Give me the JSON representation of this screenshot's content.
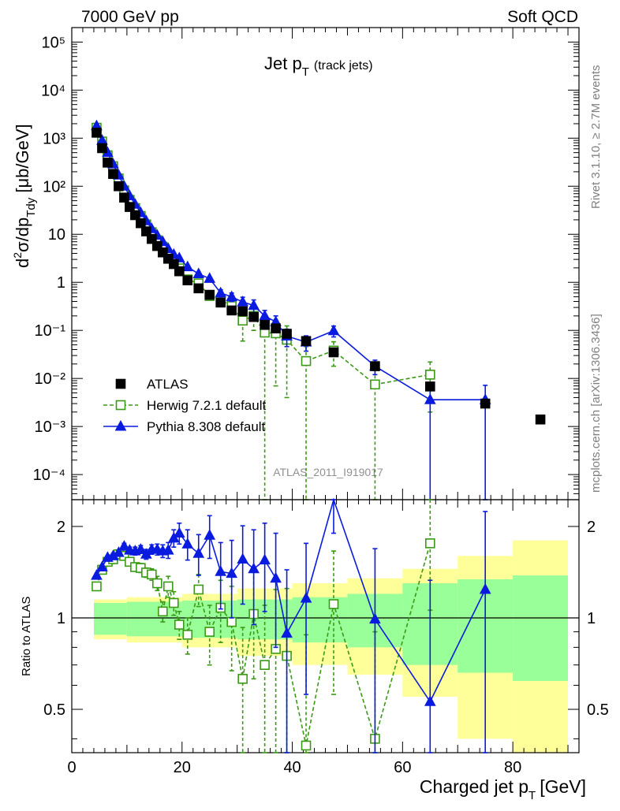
{
  "header": {
    "left": "7000 GeV pp",
    "right": "Soft QCD"
  },
  "side_text": {
    "upper": "Rivet 3.1.10, ≥ 2.7M events",
    "lower": "mcplots.cern.ch [arXiv:1306.3436]"
  },
  "watermark": "ATLAS_2011_I919017",
  "colors": {
    "atlas": "#000000",
    "herwig": "#3a9a14",
    "pythia": "#0a1be0",
    "band_inner": "#99ff99",
    "band_outer": "#ffff99"
  },
  "chart_data": [
    {
      "type": "scatter",
      "title": "Jet p_T (track jets)",
      "title_main": "Jet p",
      "title_sub": "T",
      "title_note": "(track jets)",
      "ylabel": "d²σ/dp_Tdy [μb/GeV]",
      "xlim": [
        0,
        92
      ],
      "ylim": [
        3e-05,
        200000.0
      ],
      "y_scale": "log",
      "y_ticks": [
        "10⁵",
        "10⁴",
        "10³",
        "10²",
        "10",
        "1",
        "10⁻¹",
        "10⁻²",
        "10⁻³",
        "10⁻⁴"
      ],
      "legend_position": "bottom-left",
      "x": [
        4.5,
        5.5,
        6.5,
        7.5,
        8.5,
        9.5,
        10.5,
        11.5,
        12.5,
        13.5,
        14.5,
        15.5,
        16.5,
        17.5,
        18.5,
        19.5,
        21,
        23,
        25,
        27,
        29,
        31,
        33,
        35,
        37,
        39,
        42.5,
        47.5,
        55,
        65,
        75,
        85
      ],
      "series": [
        {
          "name": "ATLAS",
          "values": [
            1300,
            620,
            310,
            180,
            100,
            58,
            37,
            25,
            17,
            11.5,
            8,
            5.7,
            4.2,
            3.1,
            2.4,
            1.7,
            1.1,
            0.75,
            0.55,
            0.38,
            0.26,
            0.25,
            0.19,
            0.13,
            0.11,
            0.085,
            0.06,
            0.035,
            0.018,
            0.0068,
            0.003,
            0.0014
          ]
        },
        {
          "name": "Herwig 7.2.1 default",
          "values": [
            1650,
            850,
            440,
            260,
            145,
            82,
            52,
            35,
            24,
            16,
            11,
            7.5,
            5.5,
            3.5,
            2.7,
            1.95,
            1.15,
            0.95,
            0.52,
            0.43,
            0.32,
            0.16,
            0.2,
            0.09,
            0.087,
            0.064,
            0.023,
            0.038,
            0.0075,
            0.012
          ],
          "errors": [
            0,
            0,
            0,
            0,
            0,
            0,
            0,
            0,
            0,
            0,
            0,
            0,
            0,
            0,
            0,
            0,
            0,
            0,
            0,
            0,
            0.1,
            0.1,
            0.1,
            0.1,
            0.08,
            0.06,
            0.023,
            0.02,
            0.0075,
            0.01
          ]
        },
        {
          "name": "Pythia 8.308 default",
          "values": [
            1800,
            900,
            500,
            290,
            170,
            100,
            63,
            42,
            28,
            19,
            13,
            9.5,
            7,
            5,
            3.8,
            3.2,
            2.1,
            1.5,
            1.2,
            0.6,
            0.5,
            0.39,
            0.33,
            0.2,
            0.15,
            0.076,
            0.057,
            0.098,
            0.018,
            0.0036,
            0.0036
          ],
          "errors": [
            0,
            0,
            0,
            0,
            0,
            0,
            0,
            0,
            0,
            0,
            0,
            0,
            0,
            0,
            0,
            0,
            0,
            0,
            0,
            0.1,
            0.1,
            0.1,
            0.1,
            0.06,
            0.05,
            0.03,
            0.02,
            0.025,
            0.006,
            0.0036,
            0.0036
          ]
        }
      ]
    },
    {
      "type": "line",
      "ylabel": "Ratio to ATLAS",
      "xlabel": "Charged jet p_T [GeV]",
      "xlabel_main": "Charged jet p",
      "xlabel_sub": "T",
      "xlabel_unit": "[GeV]",
      "xlim": [
        0,
        92
      ],
      "ylim": [
        0.36,
        2.45
      ],
      "y_scale": "log",
      "x_ticks": [
        0,
        20,
        40,
        60,
        80
      ],
      "y_ticks": [
        0.5,
        1,
        2
      ],
      "reference_line": 1,
      "bands": {
        "edges": [
          4,
          10,
          20,
          30,
          40,
          50,
          60,
          70,
          80,
          90
        ],
        "inner": [
          0.12,
          0.13,
          0.14,
          0.15,
          0.17,
          0.2,
          0.3,
          0.34,
          0.38
        ],
        "outer": [
          0.15,
          0.17,
          0.2,
          0.25,
          0.3,
          0.35,
          0.45,
          0.6,
          0.8
        ]
      },
      "series": [
        {
          "name": "Herwig 7.2.1 default",
          "x": [
            4.5,
            5.5,
            6.5,
            7.5,
            8.5,
            9.5,
            10.5,
            11.5,
            12.5,
            13.5,
            14.5,
            15.5,
            16.5,
            17.5,
            18.5,
            19.5,
            21,
            23,
            25,
            27,
            29,
            31,
            33,
            35,
            37,
            39,
            42.5,
            47.5,
            55,
            65
          ],
          "values": [
            1.27,
            1.44,
            1.53,
            1.56,
            1.62,
            1.6,
            1.53,
            1.47,
            1.46,
            1.41,
            1.39,
            1.3,
            1.05,
            1.27,
            1.12,
            0.95,
            0.88,
            1.24,
            0.9,
            1.08,
            0.97,
            0.63,
            1.03,
            0.7,
            0.79,
            0.75,
            0.38,
            1.11,
            0.4,
            1.76
          ],
          "errors": [
            0,
            0,
            0,
            0,
            0,
            0,
            0.04,
            0.04,
            0.05,
            0.05,
            0.06,
            0.07,
            0.08,
            0.1,
            0.1,
            0.1,
            0.12,
            0.15,
            0.2,
            0.25,
            0.3,
            0.3,
            0.4,
            0.4,
            0.45,
            0.5,
            0.5,
            0.55,
            0.5,
            0.7
          ]
        },
        {
          "name": "Pythia 8.308 default",
          "x": [
            4.5,
            5.5,
            6.5,
            7.5,
            8.5,
            9.5,
            10.5,
            11.5,
            12.5,
            13.5,
            14.5,
            15.5,
            16.5,
            17.5,
            18.5,
            19.5,
            21,
            23,
            25,
            27,
            29,
            31,
            33,
            35,
            37,
            39,
            42.5,
            47.5,
            55,
            65,
            75
          ],
          "values": [
            1.38,
            1.47,
            1.58,
            1.6,
            1.64,
            1.72,
            1.67,
            1.66,
            1.68,
            1.62,
            1.68,
            1.68,
            1.66,
            1.67,
            1.83,
            1.9,
            1.75,
            1.63,
            1.87,
            1.42,
            1.4,
            1.56,
            1.45,
            1.55,
            1.35,
            0.89,
            1.16,
            2.5,
            0.99,
            0.53,
            1.24
          ],
          "errors": [
            0.02,
            0.02,
            0.02,
            0.03,
            0.03,
            0.04,
            0.04,
            0.05,
            0.05,
            0.06,
            0.06,
            0.07,
            0.08,
            0.1,
            0.12,
            0.15,
            0.2,
            0.25,
            0.3,
            0.35,
            0.4,
            0.45,
            0.5,
            0.5,
            0.55,
            0.55,
            0.6,
            0.6,
            0.7,
            0.8,
            1.0
          ]
        }
      ]
    }
  ]
}
